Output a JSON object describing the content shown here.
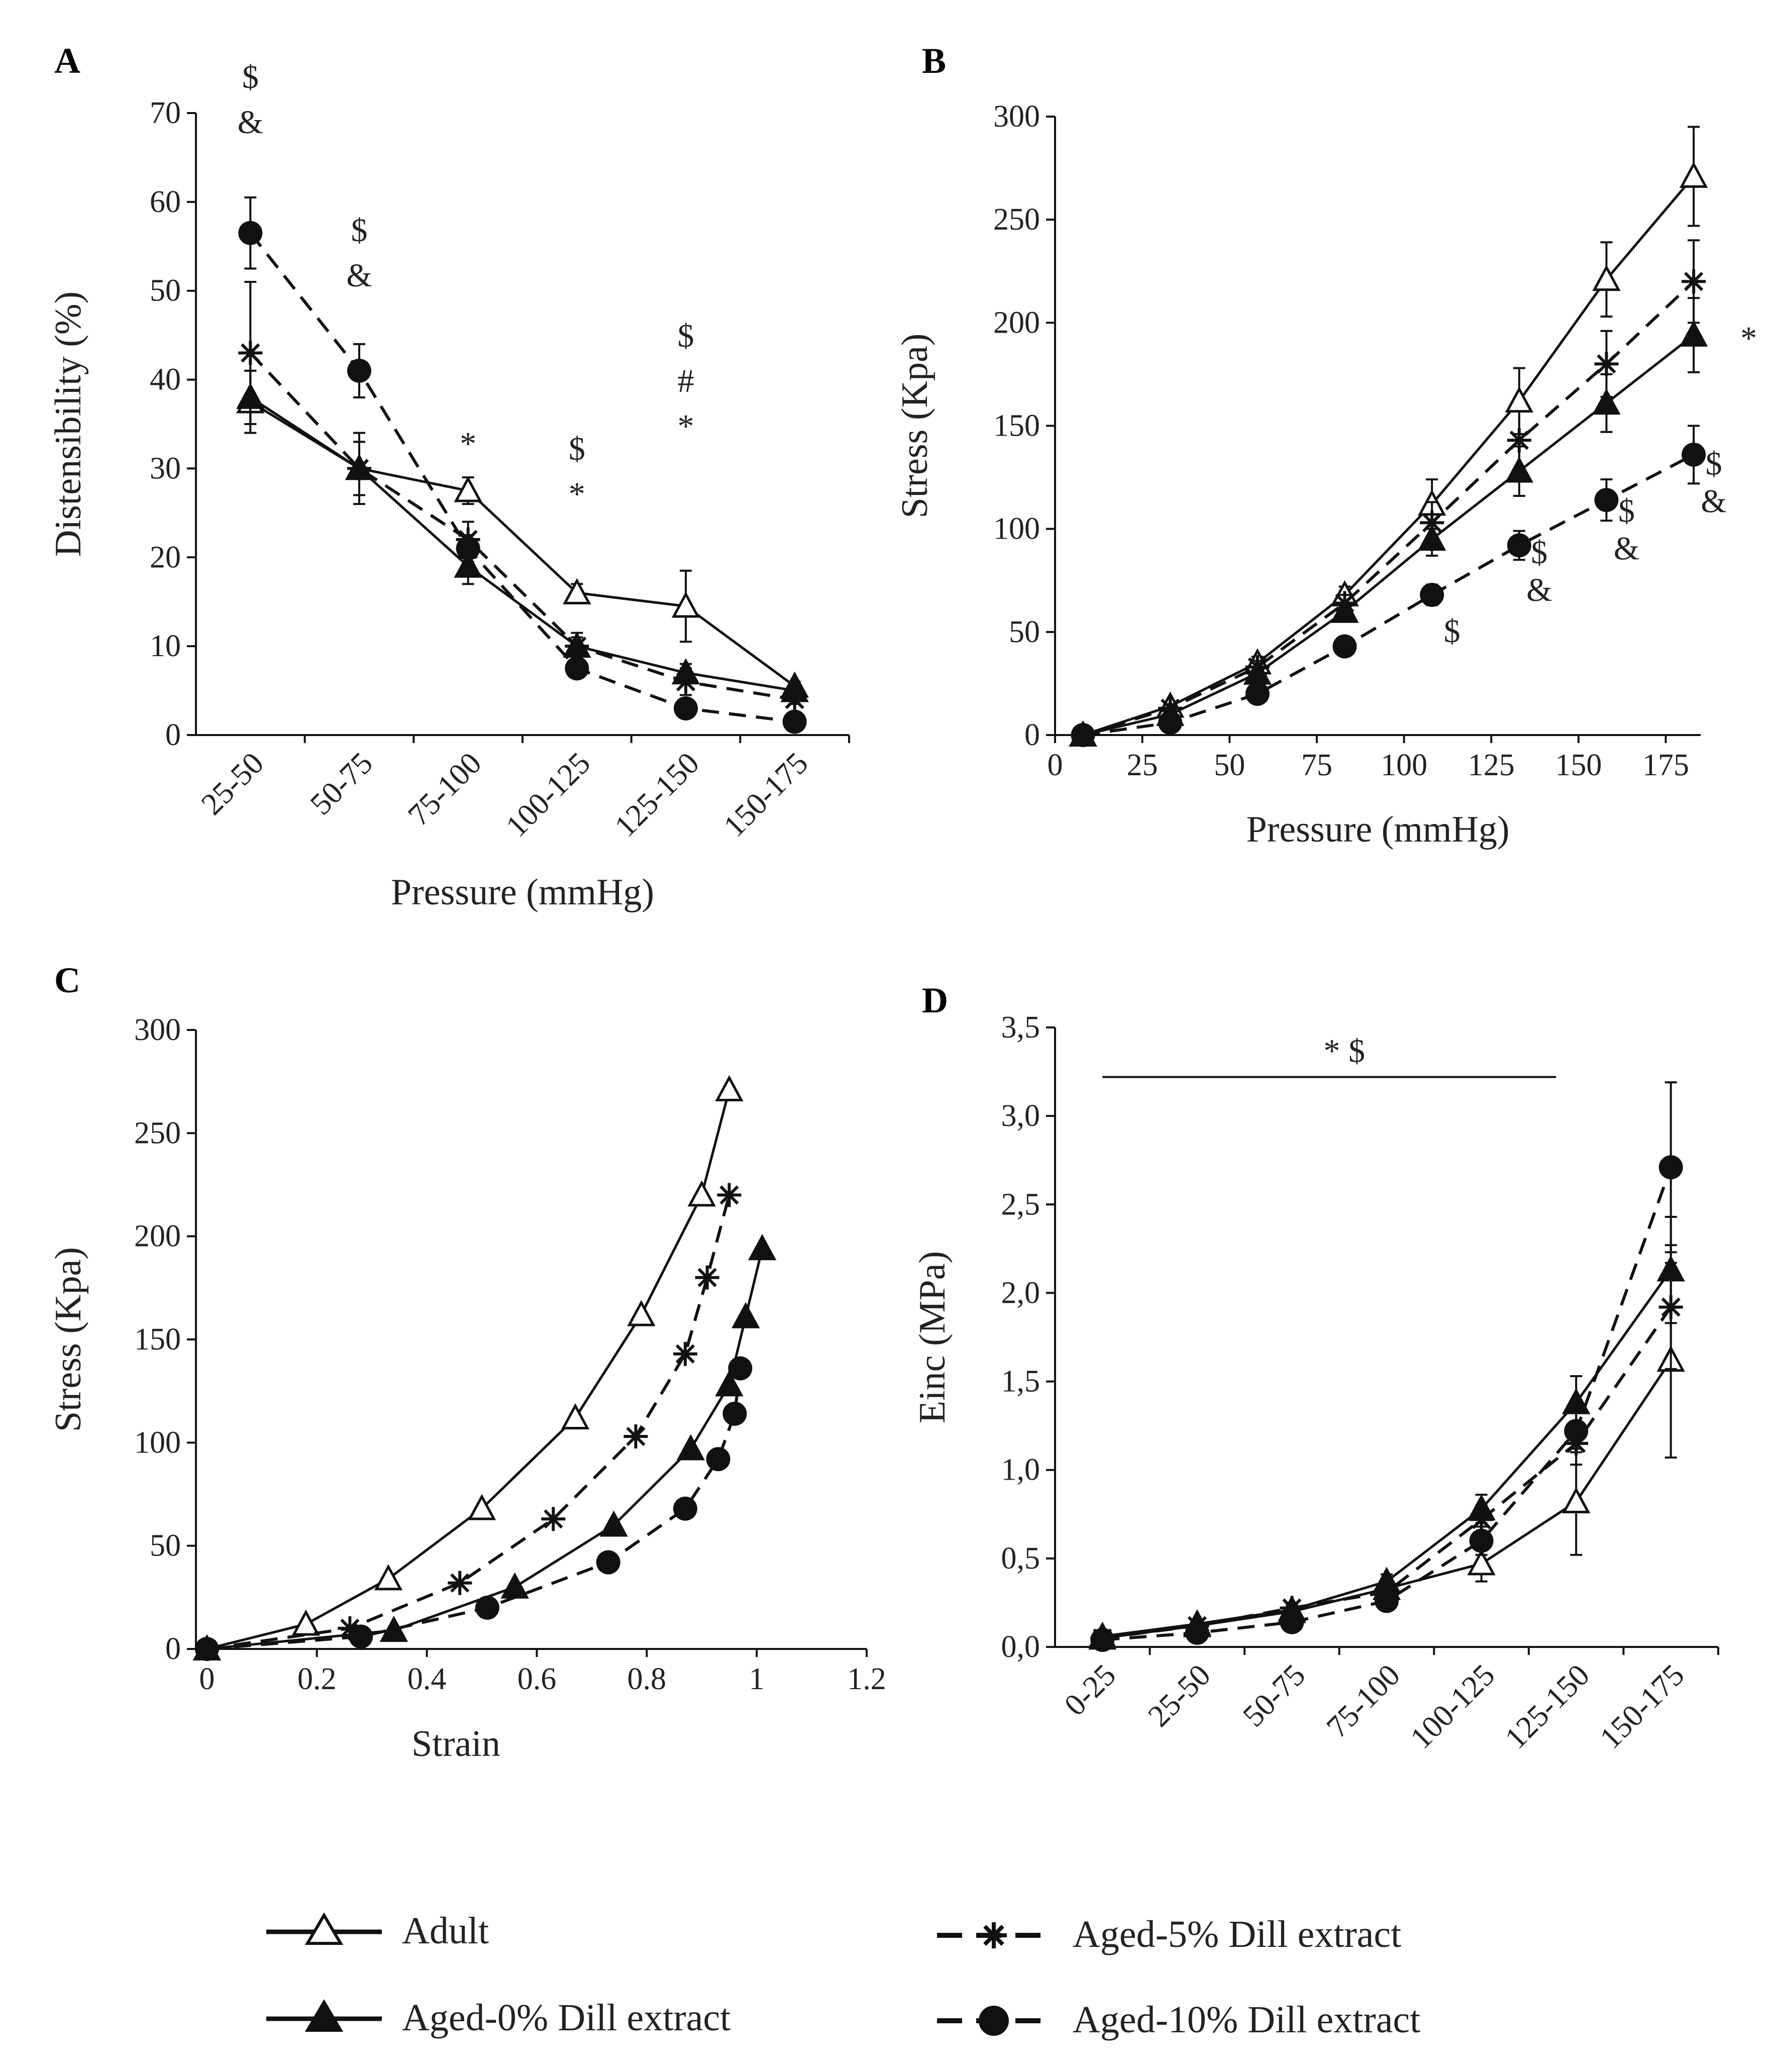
{
  "series_styles": {
    "adult": {
      "marker": "triangle-open",
      "dash": false
    },
    "aged0": {
      "marker": "triangle-filled",
      "dash": false
    },
    "aged5": {
      "marker": "star",
      "dash": true
    },
    "aged10": {
      "marker": "circle-filled",
      "dash": true
    }
  },
  "legend": {
    "adult": "Adult",
    "aged0": "Aged-0% Dill extract",
    "aged5": "Aged-5% Dill extract",
    "aged10": "Aged-10% Dill extract"
  },
  "chart_data": [
    {
      "panel": "A",
      "type": "line",
      "xlabel": "Pressure (mmHg)",
      "ylabel": "Distensibility (%)",
      "categories": [
        "25-50",
        "50-75",
        "75-100",
        "100-125",
        "125-150",
        "150-175"
      ],
      "ylim": [
        0,
        70
      ],
      "yticks": [
        "0",
        "10",
        "20",
        "30",
        "40",
        "50",
        "60",
        "70"
      ],
      "series": [
        {
          "key": "adult",
          "name": "Adult",
          "values": [
            37.5,
            30,
            27.5,
            16,
            14.5,
            5.5
          ],
          "err": [
            3.5,
            3,
            1.5,
            1,
            4,
            0.5
          ]
        },
        {
          "key": "aged0",
          "name": "Aged-0% Dill extract",
          "values": [
            38,
            30,
            19,
            10,
            7,
            5
          ],
          "err": [
            3,
            3,
            2,
            1,
            1,
            0.5
          ]
        },
        {
          "key": "aged5",
          "name": "Aged-5% Dill extract",
          "values": [
            43,
            30,
            22,
            10,
            6,
            4
          ],
          "err": [
            8,
            4,
            2,
            1.5,
            1.5,
            0.5
          ]
        },
        {
          "key": "aged10",
          "name": "Aged-10% Dill extract",
          "values": [
            56.5,
            41,
            21,
            7.5,
            3,
            1.5
          ],
          "err": [
            4,
            3,
            1.5,
            1,
            0.5,
            0.5
          ]
        }
      ],
      "annotations": [
        {
          "cat": 0,
          "lines": [
            "$",
            "&"
          ]
        },
        {
          "cat": 1,
          "lines": [
            "$",
            "&"
          ]
        },
        {
          "cat": 2,
          "lines": [
            "*"
          ]
        },
        {
          "cat": 3,
          "lines": [
            "$",
            "*"
          ]
        },
        {
          "cat": 4,
          "lines": [
            "$",
            "#",
            "*"
          ]
        }
      ]
    },
    {
      "panel": "B",
      "type": "line",
      "xlabel": "Pressure (mmHg)",
      "ylabel": "Stress (Kpa)",
      "xlim": [
        0,
        185
      ],
      "xticks": [
        "0",
        "25",
        "50",
        "75",
        "100",
        "125",
        "150",
        "175"
      ],
      "ylim": [
        0,
        300
      ],
      "yticks": [
        "0",
        "50",
        "100",
        "150",
        "200",
        "250",
        "300"
      ],
      "x": [
        8,
        33,
        58,
        83,
        108,
        133,
        158,
        183
      ],
      "series": [
        {
          "key": "adult",
          "name": "Adult",
          "values": [
            0,
            14,
            35,
            68,
            112,
            162,
            221,
            271
          ],
          "err": [
            0,
            2,
            3,
            4,
            12,
            16,
            18,
            24
          ]
        },
        {
          "key": "aged0",
          "name": "Aged-0% Dill extract",
          "values": [
            0,
            10,
            30,
            60,
            95,
            128,
            161,
            194
          ],
          "err": [
            0,
            2,
            3,
            4,
            8,
            12,
            14,
            18
          ]
        },
        {
          "key": "aged5",
          "name": "Aged-5% Dill extract",
          "values": [
            0,
            13,
            33,
            64,
            103,
            143,
            180,
            220
          ],
          "err": [
            0,
            2,
            3,
            4,
            10,
            14,
            16,
            20
          ]
        },
        {
          "key": "aged10",
          "name": "Aged-10% Dill extract",
          "values": [
            0,
            6,
            20,
            43,
            68,
            92,
            114,
            136
          ],
          "err": [
            0,
            2,
            3,
            3,
            5,
            7,
            10,
            14
          ]
        }
      ],
      "annotations": [
        {
          "x": 108,
          "y": 50,
          "lines": [
            "$"
          ]
        },
        {
          "x": 133,
          "y": 70,
          "lines": [
            "$",
            "&"
          ]
        },
        {
          "x": 158,
          "y": 90,
          "lines": [
            "$",
            "&"
          ]
        },
        {
          "x": 183,
          "y": 113,
          "lines": [
            "$",
            "&"
          ]
        },
        {
          "x": 193,
          "y": 192,
          "lines": [
            "*"
          ]
        }
      ]
    },
    {
      "panel": "C",
      "type": "line",
      "xlabel": "Strain",
      "ylabel": "Stress (Kpa)",
      "xlim": [
        -0.02,
        1.2
      ],
      "xticks": [
        "0",
        "0.2",
        "0.4",
        "0.6",
        "0.8",
        "1",
        "1.2"
      ],
      "ylim": [
        0,
        300
      ],
      "yticks": [
        "0",
        "50",
        "100",
        "150",
        "200",
        "250",
        "300"
      ],
      "series": [
        {
          "key": "adult",
          "name": "Adult",
          "x": [
            0,
            0.18,
            0.33,
            0.5,
            0.67,
            0.79,
            0.9,
            0.95
          ],
          "values": [
            0,
            12,
            34,
            68,
            112,
            162,
            220,
            271
          ]
        },
        {
          "key": "aged0",
          "name": "Aged-0% Dill extract",
          "x": [
            0,
            0.34,
            0.56,
            0.74,
            0.88,
            0.95,
            0.98,
            1.01
          ],
          "values": [
            0,
            9,
            30,
            60,
            97,
            128,
            161,
            194
          ]
        },
        {
          "key": "aged5",
          "name": "Aged-5% Dill extract",
          "x": [
            0,
            0.26,
            0.46,
            0.63,
            0.78,
            0.87,
            0.91,
            0.95
          ],
          "values": [
            0,
            10,
            32,
            63,
            103,
            143,
            180,
            220
          ]
        },
        {
          "key": "aged10",
          "name": "Aged-10% Dill extract",
          "x": [
            0,
            0.28,
            0.51,
            0.73,
            0.87,
            0.93,
            0.96,
            0.97
          ],
          "values": [
            0,
            6,
            20,
            42,
            68,
            92,
            114,
            136
          ]
        }
      ]
    },
    {
      "panel": "D",
      "type": "line",
      "xlabel": "",
      "ylabel": "Einc (MPa)",
      "categories": [
        "0-25",
        "25-50",
        "50-75",
        "75-100",
        "100-125",
        "125-150",
        "150-175"
      ],
      "ylim": [
        0,
        3.5
      ],
      "yticks": [
        "0,0",
        "0,5",
        "1,0",
        "1,5",
        "2,0",
        "2,5",
        "3,0",
        "3,5"
      ],
      "series": [
        {
          "key": "adult",
          "name": "Adult",
          "values": [
            0.05,
            0.12,
            0.2,
            0.33,
            0.47,
            0.82,
            1.62
          ],
          "err": [
            0.02,
            0.02,
            0.03,
            0.04,
            0.1,
            0.3,
            0.55
          ]
        },
        {
          "key": "aged0",
          "name": "Aged-0% Dill extract",
          "values": [
            0.06,
            0.13,
            0.21,
            0.37,
            0.78,
            1.38,
            2.13
          ],
          "err": [
            0.02,
            0.02,
            0.03,
            0.04,
            0.08,
            0.15,
            0.3
          ]
        },
        {
          "key": "aged5",
          "name": "Aged-5% Dill extract",
          "values": [
            0.05,
            0.12,
            0.22,
            0.31,
            0.72,
            1.15,
            1.92
          ],
          "err": [
            0.02,
            0.02,
            0.03,
            0.04,
            0.08,
            0.12,
            0.35
          ]
        },
        {
          "key": "aged10",
          "name": "Aged-10% Dill extract",
          "values": [
            0.04,
            0.08,
            0.14,
            0.26,
            0.6,
            1.22,
            2.71
          ],
          "err": [
            0.02,
            0.02,
            0.03,
            0.04,
            0.08,
            0.12,
            0.48
          ]
        }
      ],
      "annotation": {
        "text": "*   $",
        "from_cat": 0,
        "to_cat": 5,
        "y": 3.22
      }
    }
  ],
  "panel_labels": [
    "A",
    "B",
    "C",
    "D"
  ]
}
